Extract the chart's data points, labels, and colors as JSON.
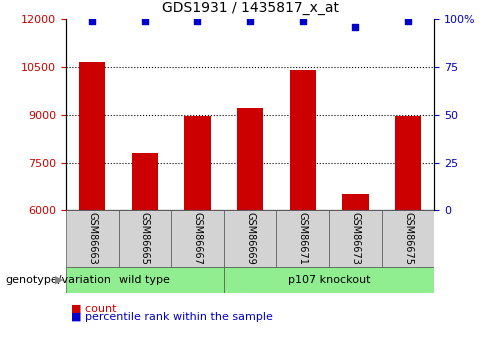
{
  "title": "GDS1931 / 1435817_x_at",
  "samples": [
    "GSM86663",
    "GSM86665",
    "GSM86667",
    "GSM86669",
    "GSM86671",
    "GSM86673",
    "GSM86675"
  ],
  "counts": [
    10650,
    7800,
    8950,
    9200,
    10400,
    6500,
    8950
  ],
  "percentile_ranks": [
    99,
    99,
    99,
    99,
    99,
    96,
    99
  ],
  "ylim_left": [
    6000,
    12000
  ],
  "yticks_left": [
    6000,
    7500,
    9000,
    10500,
    12000
  ],
  "ylim_right": [
    0,
    100
  ],
  "yticks_right": [
    0,
    25,
    50,
    75,
    100
  ],
  "bar_color": "#cc0000",
  "dot_color": "#0000cc",
  "bar_width": 0.5,
  "groups": [
    {
      "label": "wild type",
      "indices": [
        0,
        1,
        2
      ],
      "color": "#90ee90"
    },
    {
      "label": "p107 knockout",
      "indices": [
        3,
        4,
        5,
        6
      ],
      "color": "#90ee90"
    }
  ],
  "group_label": "genotype/variation",
  "legend_count_label": "count",
  "legend_percentile_label": "percentile rank within the sample",
  "title_fontsize": 10,
  "axis_label_color_left": "#cc0000",
  "axis_label_color_right": "#0000cc",
  "tick_label_fontsize": 8,
  "sample_label_fontsize": 7,
  "group_label_fontsize": 8,
  "legend_fontsize": 8
}
